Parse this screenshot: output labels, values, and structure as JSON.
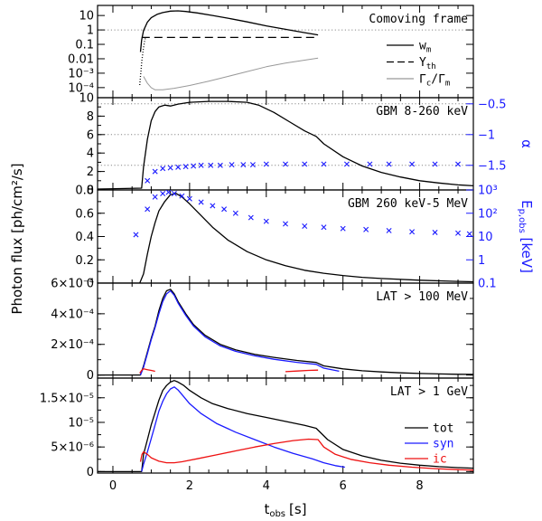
{
  "chart_data": {
    "type": "line",
    "shared_x": {
      "label": "t_obs [s]",
      "label_main": "t",
      "label_sub": "obs",
      "label_unit": "[s]",
      "xlim": [
        -0.4,
        9.4
      ],
      "ticks": [
        0,
        2,
        4,
        6,
        8
      ]
    },
    "shared_ylabel": "Photon flux [ph/cm²/s]",
    "panels": [
      {
        "id": "comoving",
        "title": "Comoving frame",
        "yscale": "log",
        "ylim": [
          2e-05,
          50
        ],
        "yticks": [
          {
            "v": 10,
            "t": "10"
          },
          {
            "v": 1,
            "t": "1"
          },
          {
            "v": 0.1,
            "t": "0.1"
          },
          {
            "v": 0.01,
            "t": "0.01"
          },
          {
            "v": 0.001,
            "t": "10⁻³"
          },
          {
            "v": 0.0001,
            "t": "10⁻⁴"
          }
        ],
        "hlines": [
          1
        ],
        "legend": [
          {
            "name": "w_m",
            "main": "w",
            "sub": "m",
            "style": "solid"
          },
          {
            "name": "Y_th",
            "main": "Y",
            "sub": "th",
            "style": "dashed"
          },
          {
            "name": "Γ_c/Γ_m",
            "main": "Γ",
            "sub": "c",
            "mid": "/Γ",
            "sub2": "m",
            "style": "gray"
          }
        ],
        "series": [
          {
            "name": "w_m",
            "x": [
              0.72,
              0.75,
              0.8,
              0.9,
              1.0,
              1.15,
              1.3,
              1.5,
              1.7,
              1.9,
              2.2,
              2.6,
              3.0,
              3.5,
              4.0,
              4.5,
              5.0,
              5.35
            ],
            "y": [
              0.03,
              0.2,
              0.9,
              3.5,
              7,
              12,
              16,
              20,
              21,
              19,
              15,
              10,
              6.5,
              3.6,
              1.9,
              1.1,
              0.65,
              0.45
            ]
          },
          {
            "name": "Y_th",
            "x": [
              0.75,
              1.2,
              2.0,
              3.0,
              4.0,
              5.0,
              5.35
            ],
            "y": [
              0.3,
              0.3,
              0.3,
              0.3,
              0.3,
              0.3,
              0.3
            ]
          },
          {
            "name": "Γ_c/Γ_m",
            "x": [
              0.8,
              0.9,
              1.0,
              1.1,
              1.3,
              1.6,
              2.0,
              2.5,
              3.0,
              3.5,
              4.0,
              4.5,
              5.0,
              5.35
            ],
            "y": [
              0.0006,
              0.0002,
              0.0001,
              7e-05,
              7e-05,
              9e-05,
              0.00014,
              0.00028,
              0.0006,
              0.0013,
              0.0028,
              0.005,
              0.008,
              0.011
            ]
          },
          {
            "name": "early-dotted",
            "x": [
              0.7,
              0.71,
              0.72,
              0.73,
              0.74,
              0.75,
              0.76,
              0.77,
              0.78,
              0.79,
              0.8,
              0.81,
              0.82,
              0.83,
              0.84,
              0.85
            ],
            "y": [
              0.00015,
              0.0003,
              0.0006,
              0.0012,
              0.0025,
              0.005,
              0.009,
              0.015,
              0.025,
              0.04,
              0.06,
              0.09,
              0.13,
              0.18,
              0.23,
              0.28
            ]
          }
        ]
      },
      {
        "id": "gbm8",
        "title": "GBM 8-260 keV",
        "yscale": "linear",
        "ylim": [
          0,
          10
        ],
        "yticks": [
          {
            "v": 0,
            "t": "0"
          },
          {
            "v": 2,
            "t": "2"
          },
          {
            "v": 4,
            "t": "4"
          },
          {
            "v": 6,
            "t": "6"
          },
          {
            "v": 8,
            "t": "8"
          },
          {
            "v": 10,
            "t": "10"
          }
        ],
        "right_axis": {
          "label": "α",
          "ylim": [
            -1.9,
            -0.4
          ],
          "yticks": [
            {
              "v": -0.5,
              "t": "−0.5"
            },
            {
              "v": -1,
              "t": "−1"
            },
            {
              "v": -1.5,
              "t": "−1.5"
            }
          ]
        },
        "hlines_right": [
          -0.5,
          -1,
          -1.5
        ],
        "series": [
          {
            "name": "flux",
            "x": [
              -0.4,
              0.75,
              0.8,
              0.9,
              1.0,
              1.1,
              1.2,
              1.35,
              1.5,
              1.7,
              2.0,
              2.5,
              3.0,
              3.5,
              3.8,
              4.2,
              4.6,
              5.0,
              5.3,
              5.5,
              6.0,
              6.5,
              7.0,
              7.5,
              8.0,
              8.5,
              9.0,
              9.4
            ],
            "y": [
              0.1,
              0.2,
              2.5,
              5.5,
              7.5,
              8.5,
              9.0,
              9.2,
              9.1,
              9.3,
              9.5,
              9.6,
              9.6,
              9.5,
              9.2,
              8.4,
              7.4,
              6.4,
              5.8,
              5.0,
              3.6,
              2.6,
              1.9,
              1.4,
              1.0,
              0.75,
              0.55,
              0.45
            ]
          },
          {
            "name": "alpha",
            "marker": "x",
            "axis": "right",
            "x": [
              0.9,
              1.1,
              1.3,
              1.5,
              1.7,
              1.9,
              2.1,
              2.3,
              2.55,
              2.8,
              3.1,
              3.4,
              3.65,
              4.0,
              4.5,
              5.0,
              5.5,
              6.1,
              6.7,
              7.2,
              7.8,
              8.4,
              9.0
            ],
            "y": [
              -1.75,
              -1.6,
              -1.55,
              -1.54,
              -1.53,
              -1.52,
              -1.51,
              -1.5,
              -1.5,
              -1.5,
              -1.49,
              -1.49,
              -1.49,
              -1.48,
              -1.48,
              -1.48,
              -1.48,
              -1.48,
              -1.48,
              -1.48,
              -1.48,
              -1.48,
              -1.48
            ]
          }
        ]
      },
      {
        "id": "gbm260",
        "title": "GBM 260 keV-5 MeV",
        "yscale": "linear",
        "ylim": [
          0,
          0.8
        ],
        "yticks": [
          {
            "v": 0,
            "t": "0"
          },
          {
            "v": 0.2,
            "t": "0.2"
          },
          {
            "v": 0.4,
            "t": "0.4"
          },
          {
            "v": 0.6,
            "t": "0.6"
          },
          {
            "v": 0.8,
            "t": "0.8"
          }
        ],
        "right_axis": {
          "label": "E_p,obs [keV]",
          "label_main": "E",
          "label_sub": "p,obs",
          "label_unit": " [keV]",
          "scale": "log",
          "ylim": [
            0.1,
            1000
          ],
          "yticks": [
            {
              "v": 1000,
              "t": "10³"
            },
            {
              "v": 100,
              "t": "10²"
            },
            {
              "v": 10,
              "t": "10"
            },
            {
              "v": 1,
              "t": "1"
            },
            {
              "v": 0.1,
              "t": "0.1"
            }
          ]
        },
        "series": [
          {
            "name": "flux",
            "x": [
              -0.4,
              0.7,
              0.8,
              0.9,
              1.0,
              1.1,
              1.2,
              1.35,
              1.5,
              1.65,
              1.8,
              2.0,
              2.3,
              2.6,
              3.0,
              3.5,
              4.0,
              4.5,
              5.0,
              5.5,
              6.0,
              6.5,
              7.0,
              8.0,
              9.0,
              9.4
            ],
            "y": [
              0.0,
              0.0,
              0.08,
              0.25,
              0.4,
              0.52,
              0.62,
              0.7,
              0.76,
              0.77,
              0.74,
              0.68,
              0.58,
              0.48,
              0.37,
              0.27,
              0.2,
              0.15,
              0.11,
              0.085,
              0.065,
              0.05,
              0.04,
              0.025,
              0.015,
              0.012
            ]
          },
          {
            "name": "Ep",
            "marker": "x",
            "axis": "right",
            "x": [
              0.6,
              0.9,
              1.1,
              1.3,
              1.45,
              1.6,
              1.8,
              2.0,
              2.3,
              2.6,
              2.9,
              3.2,
              3.6,
              4.0,
              4.5,
              5.0,
              5.5,
              6.0,
              6.6,
              7.2,
              7.8,
              8.4,
              9.0,
              9.3
            ],
            "y": [
              12,
              150,
              500,
              700,
              800,
              700,
              550,
              420,
              300,
              210,
              150,
              100,
              65,
              45,
              35,
              28,
              25,
              22,
              20,
              18,
              16,
              15,
              14,
              13
            ]
          }
        ]
      },
      {
        "id": "lat100",
        "title": "LAT > 100 MeV",
        "yscale": "linear",
        "ylim": [
          -2e-05,
          0.0006
        ],
        "yticks": [
          {
            "v": 0,
            "t": "0"
          },
          {
            "v": 0.0002,
            "t": "2×10⁻⁴"
          },
          {
            "v": 0.0004,
            "t": "4×10⁻⁴"
          },
          {
            "v": 0.0006,
            "t": "6×10⁻⁴"
          }
        ],
        "series": [
          {
            "name": "tot",
            "x": [
              -0.4,
              0.72,
              0.8,
              0.9,
              1.0,
              1.1,
              1.2,
              1.3,
              1.4,
              1.5,
              1.6,
              1.7,
              1.9,
              2.1,
              2.4,
              2.8,
              3.2,
              3.7,
              4.2,
              4.8,
              5.3,
              5.5,
              6.0,
              6.5,
              7.0,
              7.5,
              8.0,
              8.5,
              9.0,
              9.4
            ],
            "y": [
              0.0,
              0.0,
              6e-05,
              0.00015,
              0.00024,
              0.00032,
              0.00042,
              0.0005,
              0.00055,
              0.00056,
              0.00053,
              0.00048,
              0.0004,
              0.00033,
              0.00026,
              0.0002,
              0.000165,
              0.000135,
              0.000115,
              9.5e-05,
              8.2e-05,
              6e-05,
              4e-05,
              2.8e-05,
              2e-05,
              1.4e-05,
              1e-05,
              7e-06,
              5e-06,
              4e-06
            ]
          },
          {
            "name": "syn",
            "x": [
              0.72,
              0.8,
              0.9,
              1.0,
              1.1,
              1.2,
              1.3,
              1.4,
              1.5,
              1.6,
              1.7,
              1.9,
              2.1,
              2.4,
              2.8,
              3.2,
              3.7,
              4.2,
              4.8,
              5.3,
              5.5,
              5.9
            ],
            "y": [
              0.0,
              5e-05,
              0.00014,
              0.00023,
              0.00031,
              0.0004,
              0.00048,
              0.00053,
              0.00055,
              0.00052,
              0.00047,
              0.00039,
              0.00032,
              0.00025,
              0.00019,
              0.000155,
              0.000125,
              0.000103,
              8.3e-05,
              7e-05,
              4.5e-05,
              2.5e-05
            ]
          },
          {
            "name": "ic",
            "x": [
              0.7,
              0.75,
              0.8,
              0.9,
              1.0,
              1.1
            ],
            "y": [
              1.2e-05,
              3e-05,
              4e-05,
              3.5e-05,
              3e-05,
              2.4e-05
            ]
          },
          {
            "name": "ic-late",
            "x": [
              4.5,
              4.8,
              5.1,
              5.35
            ],
            "y": [
              2.2e-05,
              2.6e-05,
              3e-05,
              3.2e-05
            ]
          }
        ]
      },
      {
        "id": "lat1",
        "title": "LAT > 1 GeV",
        "yscale": "linear",
        "ylim": [
          -3e-07,
          1.9e-05
        ],
        "yticks": [
          {
            "v": 0,
            "t": "0"
          },
          {
            "v": 5e-06,
            "t": "5×10⁻⁶"
          },
          {
            "v": 1e-05,
            "t": "10⁻⁵"
          },
          {
            "v": 1.5e-05,
            "t": "1.5×10⁻⁵"
          }
        ],
        "legend": [
          {
            "name": "tot",
            "color": "#000000"
          },
          {
            "name": "syn",
            "color": "#1a1aff"
          },
          {
            "name": "ic",
            "color": "#ee1111"
          }
        ],
        "series": [
          {
            "name": "tot",
            "x": [
              -0.4,
              0.75,
              0.8,
              0.9,
              1.0,
              1.1,
              1.2,
              1.3,
              1.4,
              1.5,
              1.6,
              1.7,
              1.85,
              2.0,
              2.3,
              2.6,
              3.0,
              3.5,
              4.0,
              4.5,
              5.0,
              5.3,
              5.6,
              6.0,
              6.5,
              7.0,
              7.5,
              8.0,
              8.5,
              9.0,
              9.4
            ],
            "y": [
              0.0,
              0.0,
              3.5e-06,
              6.5e-06,
              9.5e-06,
              1.2e-05,
              1.45e-05,
              1.65e-05,
              1.75e-05,
              1.82e-05,
              1.85e-05,
              1.82e-05,
              1.75e-05,
              1.65e-05,
              1.5e-05,
              1.38e-05,
              1.28e-05,
              1.18e-05,
              1.1e-05,
              1.02e-05,
              9.4e-06,
              8.8e-06,
              6.5e-06,
              4.5e-06,
              3.2e-06,
              2.3e-06,
              1.7e-06,
              1.3e-06,
              1e-06,
              8e-07,
              7e-07
            ]
          },
          {
            "name": "syn",
            "x": [
              0.75,
              0.8,
              0.9,
              1.0,
              1.1,
              1.2,
              1.3,
              1.4,
              1.5,
              1.6,
              1.7,
              1.85,
              2.0,
              2.3,
              2.7,
              3.2,
              3.7,
              4.2,
              4.7,
              5.2,
              5.5,
              5.8,
              6.05
            ],
            "y": [
              0.0,
              1.5e-06,
              4e-06,
              6.7e-06,
              9.5e-06,
              1.23e-05,
              1.43e-05,
              1.58e-05,
              1.68e-05,
              1.72e-05,
              1.66e-05,
              1.52e-05,
              1.38e-05,
              1.18e-05,
              9.8e-06,
              8e-06,
              6.5e-06,
              5e-06,
              3.7e-06,
              2.6e-06,
              1.8e-06,
              1.2e-06,
              9e-07
            ]
          },
          {
            "name": "ic",
            "x": [
              0.72,
              0.76,
              0.8,
              0.9,
              1.0,
              1.2,
              1.4,
              1.6,
              1.8,
              2.2,
              2.7,
              3.2,
              3.7,
              4.2,
              4.7,
              5.1,
              5.35,
              5.5,
              5.8,
              6.2,
              6.7,
              7.2,
              7.8,
              8.4,
              9.0,
              9.4
            ],
            "y": [
              2e-06,
              3.5e-06,
              4e-06,
              3.5e-06,
              2.8e-06,
              2.1e-06,
              1.8e-06,
              1.8e-06,
              2e-06,
              2.6e-06,
              3.4e-06,
              4.2e-06,
              5e-06,
              5.7e-06,
              6.3e-06,
              6.6e-06,
              6.5e-06,
              5e-06,
              3.5e-06,
              2.5e-06,
              1.8e-06,
              1.3e-06,
              9e-07,
              6e-07,
              4e-07,
              3e-07
            ]
          }
        ]
      }
    ]
  },
  "colors": {
    "black": "#000000",
    "blue": "#1a1aff",
    "red": "#ee1111",
    "gray": "#999999",
    "dotted": "#888888"
  }
}
